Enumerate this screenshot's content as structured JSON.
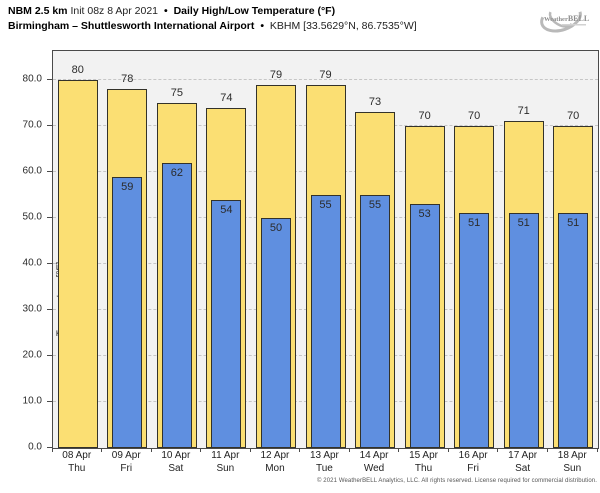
{
  "header": {
    "model": "NBM 2.5 km",
    "init": "Init 08z 8 Apr 2021",
    "bullet": "•",
    "product": "Daily High/Low Temperature (°F)",
    "location": "Birmingham – Shuttlesworth International Airport",
    "station": "KBHM [33.5629°N, 86.7535°W]"
  },
  "logo": {
    "text": "WeatherBELL"
  },
  "chart_data": {
    "type": "bar",
    "title": "Daily High/Low Temperature (°F)",
    "ylabel": "Temperature [°F]",
    "ylim": [
      0,
      86.3
    ],
    "yticks": [
      0,
      10,
      20,
      30,
      40,
      50,
      60,
      70,
      80
    ],
    "ytick_labels": [
      "0.0",
      "10.0",
      "20.0",
      "30.0",
      "40.0",
      "50.0",
      "60.0",
      "70.0",
      "80.0"
    ],
    "grid": true,
    "legend_position": "none",
    "categories": [
      {
        "date": "08 Apr",
        "day": "Thu"
      },
      {
        "date": "09 Apr",
        "day": "Fri"
      },
      {
        "date": "10 Apr",
        "day": "Sat"
      },
      {
        "date": "11 Apr",
        "day": "Sun"
      },
      {
        "date": "12 Apr",
        "day": "Mon"
      },
      {
        "date": "13 Apr",
        "day": "Tue"
      },
      {
        "date": "14 Apr",
        "day": "Wed"
      },
      {
        "date": "15 Apr",
        "day": "Thu"
      },
      {
        "date": "16 Apr",
        "day": "Fri"
      },
      {
        "date": "17 Apr",
        "day": "Sat"
      },
      {
        "date": "18 Apr",
        "day": "Sun"
      }
    ],
    "series": [
      {
        "name": "High",
        "color": "#fbdf73",
        "values": [
          80,
          78,
          75,
          74,
          79,
          79,
          73,
          70,
          70,
          71,
          70
        ]
      },
      {
        "name": "Low",
        "color": "#5f8fe0",
        "values": [
          null,
          59,
          62,
          54,
          50,
          55,
          55,
          53,
          51,
          51,
          51
        ]
      }
    ]
  },
  "colors": {
    "bar_border": "#33322a",
    "plot_background": "#f2f2f2",
    "grid": "#c6c6c6"
  },
  "footer": "© 2021 WeatherBELL Analytics, LLC. All rights reserved. License required for commercial distribution."
}
